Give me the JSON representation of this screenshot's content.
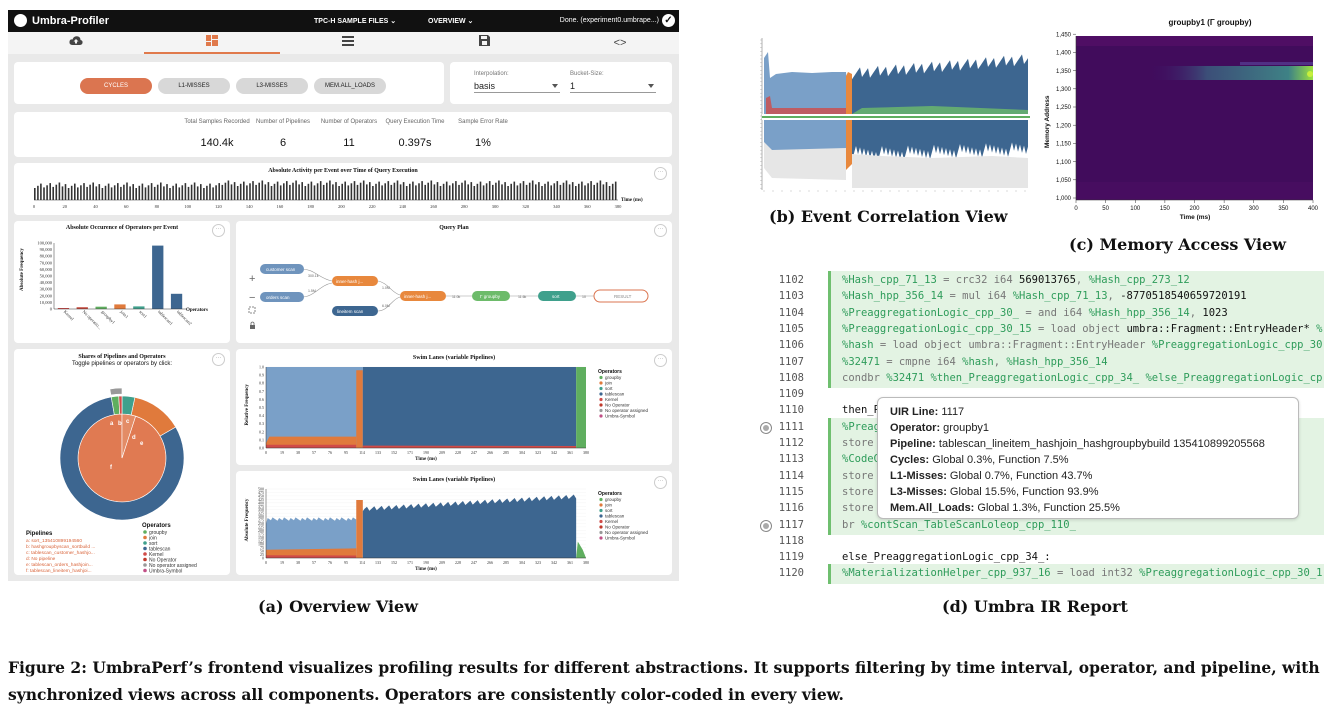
{
  "overview": {
    "app_title": "Umbra-Profiler",
    "menu_files": "TPC-H SAMPLE FILES",
    "menu_overview": "OVERVIEW",
    "status": "Done. (experiment0.umbrape...)",
    "tabs": [
      {
        "icon": "cloud-upload-icon"
      },
      {
        "icon": "dashboard-icon"
      },
      {
        "icon": "list-icon"
      },
      {
        "icon": "save-icon"
      },
      {
        "icon": "code-icon"
      }
    ],
    "events": [
      "CYCLES",
      "L1-MISSES",
      "L3-MISSES",
      "MEM.ALL_LOADS"
    ],
    "interpolation": {
      "label": "Interpolation:",
      "value": "basis"
    },
    "bucket_size": {
      "label": "Bucket-Size:",
      "value": "1"
    },
    "stats": [
      {
        "label": "Total Samples Recorded",
        "value": "140.4k"
      },
      {
        "label": "Number of Pipelines",
        "value": "6"
      },
      {
        "label": "Number of Operators",
        "value": "11"
      },
      {
        "label": "Query Execution Time",
        "value": "0.397s"
      },
      {
        "label": "Sample Error Rate",
        "value": "1%"
      }
    ],
    "more_glyph": "···",
    "activity": {
      "title": "Absolute Activity per Event over Time of Query Execution",
      "xlabel": "Time (ms)",
      "ticks": [
        "0",
        "20",
        "40",
        "60",
        "80",
        "100",
        "120",
        "140",
        "160",
        "180",
        "200",
        "220",
        "240",
        "260",
        "280",
        "300",
        "320",
        "340",
        "360",
        "380"
      ]
    },
    "occurrence": {
      "title": "Absolute Occurence of Operators per Event",
      "ylabel": "Absolute Frequency",
      "xlabel": "Operators",
      "yticks": [
        "0",
        "10,000",
        "20,000",
        "30,000",
        "40,000",
        "50,000",
        "60,000",
        "70,000",
        "80,000",
        "90,000",
        "100,000"
      ],
      "categories": [
        "Kernel",
        "No operatio...",
        "groupby1",
        "join1",
        "sort1",
        "tablescan1",
        "tablescan2"
      ]
    },
    "query_plan": {
      "title": "Query Plan",
      "nodes": {
        "customer": "customer scan",
        "orders": "orders scan",
        "lineitem": "lineitem scan",
        "hash1": "inner-hash j...",
        "hash2": "inner-hash j...",
        "groupby": "Γ groupby",
        "sort": "sort",
        "result": "RESULT"
      },
      "edges": [
        "300.1k",
        "1.5M",
        "1.0M",
        "6.0M",
        "11.0k",
        "11.6k",
        "10"
      ],
      "controls": {
        "zoom_in": "+",
        "zoom_out": "−"
      }
    },
    "shares": {
      "title": "Shares of Pipelines and Operators",
      "subtitle": "Toggle pipelines or operators by click:",
      "pipelines_title": "Pipelines",
      "pipelines": [
        "a: sort_135410899194560",
        "b: hashgroupbyscan_sortbuild ...",
        "c: tablescan_customer_hashjo...",
        "d: No pipeline",
        "e: tablescan_orders_hashjoin...",
        "f: tablescan_lineitem_hashjoi..."
      ],
      "slice_letters": [
        "a",
        "b",
        "c",
        "d",
        "e",
        "f"
      ],
      "operators_title": "Operators",
      "operators": [
        "groupby",
        "join",
        "sort",
        "tablescan",
        "Kernel",
        "No Operator",
        "No operator assigned",
        "Umbra-Symbol"
      ]
    },
    "swim1": {
      "title": "Swim Lanes (variable Pipelines)",
      "ylabel": "Relative Frequency",
      "xlabel": "Time (ms)",
      "yticks": [
        "0.0",
        "0.1",
        "0.2",
        "0.3",
        "0.4",
        "0.5",
        "0.6",
        "0.7",
        "0.8",
        "0.9",
        "1.0"
      ],
      "xticks": [
        "0",
        "19",
        "38",
        "57",
        "76",
        "95",
        "114",
        "133",
        "152",
        "171",
        "190",
        "209",
        "228",
        "247",
        "266",
        "285",
        "304",
        "323",
        "342",
        "361",
        "380"
      ],
      "legend_title": "Operators",
      "legend": [
        "groupby",
        "join",
        "sort",
        "tablescan",
        "Kernel",
        "No Operator",
        "No operator assigned",
        "Umbra-Symbol"
      ]
    },
    "swim2": {
      "title": "Swim Lanes (variable Pipelines)",
      "ylabel": "Absolute Frequency",
      "xlabel": "Time (ms)",
      "yticks": [
        "0",
        "25",
        "50",
        "75",
        "100",
        "125",
        "150",
        "175",
        "200",
        "225",
        "250",
        "275",
        "300",
        "325",
        "350",
        "375",
        "400",
        "425",
        "450",
        "475",
        "500"
      ],
      "xticks": [
        "0",
        "19",
        "38",
        "57",
        "76",
        "95",
        "114",
        "133",
        "152",
        "171",
        "190",
        "209",
        "228",
        "247",
        "266",
        "285",
        "304",
        "323",
        "342",
        "361",
        "380"
      ],
      "legend_title": "Operators",
      "legend": [
        "groupby",
        "join",
        "sort",
        "tablescan",
        "Kernel",
        "No Operator",
        "No operator assigned",
        "Umbra-Symbol"
      ]
    }
  },
  "memory": {
    "title": "groupby1 (Γ groupby)",
    "ylabel": "Memory Address",
    "xlabel": "Time (ms)",
    "yticks": [
      "1,000",
      "1,050",
      "1,100",
      "1,150",
      "1,200",
      "1,250",
      "1,300",
      "1,350",
      "1,400",
      "1,450"
    ],
    "xticks": [
      "0",
      "50",
      "100",
      "150",
      "200",
      "250",
      "300",
      "350",
      "400"
    ]
  },
  "ir": {
    "lines": [
      {
        "n": "1102",
        "hl": true,
        "parts": [
          [
            "v",
            "%Hash_cpp_71_13"
          ],
          [
            "k",
            " = crc32 i64 "
          ],
          [
            "b",
            "569013765"
          ],
          [
            "k",
            ", "
          ],
          [
            "v",
            "%Hash_cpp_273_12"
          ]
        ]
      },
      {
        "n": "1103",
        "hl": true,
        "parts": [
          [
            "v",
            "%Hash_hpp_356_14"
          ],
          [
            "k",
            " = mul i64 "
          ],
          [
            "v",
            "%Hash_cpp_71_13"
          ],
          [
            "k",
            ", "
          ],
          [
            "b",
            "-8770518540659720191"
          ]
        ]
      },
      {
        "n": "1104",
        "hl": true,
        "parts": [
          [
            "v",
            "%PreaggregationLogic_cpp_30_"
          ],
          [
            "k",
            " = and i64 "
          ],
          [
            "v",
            "%Hash_hpp_356_14"
          ],
          [
            "k",
            ", "
          ],
          [
            "b",
            "1023"
          ]
        ]
      },
      {
        "n": "1105",
        "hl": true,
        "parts": [
          [
            "v",
            "%PreaggregationLogic_cpp_30_15"
          ],
          [
            "k",
            " = load object "
          ],
          [
            "b",
            "umbra::Fragment::EntryHeader* "
          ],
          [
            "v",
            "%"
          ]
        ]
      },
      {
        "n": "1106",
        "hl": true,
        "parts": [
          [
            "v",
            "%hash"
          ],
          [
            "k",
            " = load object umbra::Fragment::EntryHeader "
          ],
          [
            "v",
            "%PreaggregationLogic_cpp_30"
          ]
        ]
      },
      {
        "n": "1107",
        "hl": true,
        "parts": [
          [
            "v",
            "%32471"
          ],
          [
            "k",
            " = cmpne i64 "
          ],
          [
            "v",
            "%hash"
          ],
          [
            "k",
            ", "
          ],
          [
            "v",
            "%Hash_hpp_356_14"
          ]
        ]
      },
      {
        "n": "1108",
        "hl": true,
        "parts": [
          [
            "k",
            "condbr "
          ],
          [
            "v",
            "%32471 %then_PreaggregationLogic_cpp_34_ %else_PreaggregationLogic_cp"
          ]
        ]
      },
      {
        "n": "1109",
        "hl": false,
        "parts": []
      },
      {
        "n": "1110",
        "hl": false,
        "parts": [
          [
            "b",
            "then_P"
          ]
        ]
      },
      {
        "n": "1111",
        "hl": true,
        "marker": true,
        "parts": [
          [
            "v",
            "%Preag"
          ],
          [
            "k",
            "                                                 "
          ],
          [
            "b",
            "(%Pi"
          ]
        ]
      },
      {
        "n": "1112",
        "hl": true,
        "parts": [
          [
            "k",
            "store"
          ]
        ]
      },
      {
        "n": "1113",
        "hl": true,
        "parts": [
          [
            "v",
            "%CodeG"
          ],
          [
            "k",
            "                                                 "
          ],
          [
            "b",
            "2 4"
          ]
        ]
      },
      {
        "n": "1114",
        "hl": true,
        "parts": [
          [
            "k",
            "store"
          ]
        ]
      },
      {
        "n": "1115",
        "hl": true,
        "parts": [
          [
            "k",
            "store"
          ]
        ]
      },
      {
        "n": "1116",
        "hl": true,
        "parts": [
          [
            "k",
            "store"
          ]
        ]
      },
      {
        "n": "1117",
        "hl": true,
        "marker": true,
        "parts": [
          [
            "k",
            "br "
          ],
          [
            "v",
            "%contScan_TableScanLoleop_cpp_110_"
          ]
        ]
      },
      {
        "n": "1118",
        "hl": false,
        "parts": []
      },
      {
        "n": "1119",
        "hl": false,
        "parts": [
          [
            "b",
            "else_PreaggregationLogic_cpp_34_:"
          ]
        ]
      },
      {
        "n": "1120",
        "hl": true,
        "parts": [
          [
            "v",
            "%MaterializationHelper_cpp_937_16"
          ],
          [
            "k",
            " = load int32 "
          ],
          [
            "v",
            "%PreaggregationLogic_cpp_30_1"
          ]
        ]
      }
    ],
    "tooltip": [
      {
        "k": "UIR Line:",
        "v": " 1117"
      },
      {
        "k": "Operator:",
        "v": " groupby1"
      },
      {
        "k": "Pipeline:",
        "v": " tablescan_lineitem_hashjoin_hashgroupbybuild 135410899205568"
      },
      {
        "k": "Cycles:",
        "v": " Global 0.3%, Function 7.5%"
      },
      {
        "k": "L1-Misses:",
        "v": " Global 0.7%, Function 43.7%"
      },
      {
        "k": "L3-Misses:",
        "v": " Global 15.5%, Function 93.9%"
      },
      {
        "k": "Mem.All_Loads:",
        "v": " Global 1.3%, Function 25.5%"
      }
    ]
  },
  "captions": {
    "a": "(a) Overview View",
    "b": "(b) Event Correlation View",
    "c": "(c) Memory Access View",
    "d": "(d) Umbra IR Report",
    "figure": "Figure 2: UmbraPerf’s frontend visualizes profiling results for different abstractions. It supports filtering by time interval, operator, and pipeline, with synchronized views across all components. Operators are consistently color-coded in every view."
  },
  "colors": {
    "groupby": "#5fae5f",
    "join": "#e07a3c",
    "sort": "#3fa08c",
    "tablescan": "#3d6690",
    "kernel": "#d04b48",
    "no_operator": "#c0392b",
    "no_op_assigned": "#999999",
    "umbra_symbol": "#c14f86",
    "accent": "#db7550",
    "tablescan_light": "#7aa0c8"
  },
  "chart_data": [
    {
      "type": "bar",
      "title": "Absolute Occurence of Operators per Event",
      "categories": [
        "Kernel",
        "No operatio...",
        "groupby1",
        "join1",
        "sort1",
        "tablescan1",
        "tablescan2"
      ],
      "values": [
        1500,
        2500,
        3500,
        7000,
        4000,
        96000,
        23000
      ],
      "ylabel": "Absolute Frequency",
      "xlabel": "Operators",
      "ylim": [
        0,
        100000
      ]
    },
    {
      "type": "area",
      "title": "Swim Lanes (variable Pipelines)",
      "ylabel": "Relative Frequency",
      "xlabel": "Time (ms)",
      "xlim": [
        0,
        390
      ],
      "ylim": [
        0,
        1.0
      ],
      "series": [
        {
          "name": "tablescan",
          "x": [
            0,
            3,
            5,
            118,
            124,
            380,
            384
          ],
          "values": [
            0.55,
            0.7,
            0.75,
            0.78,
            0.0,
            0.98,
            0.0
          ]
        },
        {
          "name": "join",
          "x": [
            0,
            5,
            110,
            118,
            126
          ],
          "values": [
            0.05,
            0.15,
            0.15,
            0.95,
            0.0
          ]
        },
        {
          "name": "groupby",
          "x": [
            380,
            386,
            390
          ],
          "values": [
            0.0,
            1.0,
            1.0
          ]
        }
      ]
    },
    {
      "type": "area",
      "title": "Swim Lanes (variable Pipelines)",
      "ylabel": "Absolute Frequency",
      "xlabel": "Time (ms)",
      "xlim": [
        0,
        390
      ],
      "ylim": [
        0,
        500
      ],
      "series": [
        {
          "name": "tablescan",
          "x": [
            0,
            20,
            60,
            110,
            126,
            180,
            240,
            300,
            360,
            380
          ],
          "values": [
            250,
            280,
            290,
            300,
            360,
            380,
            410,
            420,
            430,
            440
          ]
        },
        {
          "name": "join",
          "x": [
            0,
            50,
            110,
            118,
            126
          ],
          "values": [
            60,
            70,
            80,
            420,
            0
          ]
        },
        {
          "name": "groupby",
          "x": [
            380,
            386,
            390
          ],
          "values": [
            0,
            120,
            60
          ]
        }
      ]
    }
  ]
}
